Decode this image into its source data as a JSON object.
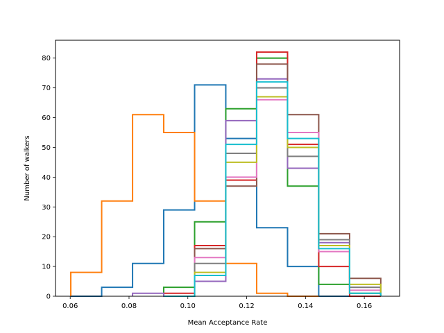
{
  "chart_data": {
    "type": "histogram",
    "title": "",
    "xlabel": "Mean Acceptance Rate",
    "ylabel": "Number of walkers",
    "xlim": [
      0.055,
      0.172
    ],
    "ylim": [
      0,
      86
    ],
    "xticks": [
      0.06,
      0.08,
      0.1,
      0.12,
      0.14,
      0.16
    ],
    "xtick_labels": [
      "0.06",
      "0.08",
      "0.10",
      "0.12",
      "0.14",
      "0.16"
    ],
    "yticks": [
      0,
      10,
      20,
      30,
      40,
      50,
      60,
      70,
      80
    ],
    "ytick_labels": [
      "0",
      "10",
      "20",
      "30",
      "40",
      "50",
      "60",
      "70",
      "80"
    ],
    "grid": false,
    "legend": "none",
    "histtype": "step",
    "series": [
      {
        "color": "#1f77b4",
        "bin_edges": [
          0.0602,
          0.0707,
          0.0812,
          0.0918,
          0.1023,
          0.1129,
          0.1234,
          0.1339,
          0.1445,
          0.155
        ],
        "counts": [
          0,
          3,
          11,
          29,
          71,
          53,
          23,
          10,
          0
        ]
      },
      {
        "color": "#ff7f0e",
        "bin_edges": [
          0.0602,
          0.0707,
          0.0812,
          0.0918,
          0.1023,
          0.1129,
          0.1234,
          0.1339,
          0.1445
        ],
        "counts": [
          8,
          32,
          61,
          55,
          32,
          11,
          1,
          0
        ]
      },
      {
        "color": "#2ca02c",
        "bin_edges": [
          0.0918,
          0.1023,
          0.1129,
          0.1234,
          0.1339,
          0.1445,
          0.155,
          0.1656
        ],
        "counts": [
          3,
          25,
          63,
          80,
          37,
          4,
          1
        ]
      },
      {
        "color": "#d62728",
        "bin_edges": [
          0.0918,
          0.1023,
          0.1129,
          0.1234,
          0.1339,
          0.1445,
          0.155,
          0.1656
        ],
        "counts": [
          1,
          17,
          39,
          82,
          51,
          10,
          0
        ]
      },
      {
        "color": "#9467bd",
        "bin_edges": [
          0.0812,
          0.0918,
          0.1023,
          0.1129,
          0.1234,
          0.1339,
          0.1445,
          0.155,
          0.1656
        ],
        "counts": [
          1,
          0,
          5,
          59,
          73,
          43,
          18,
          3
        ]
      },
      {
        "color": "#8c564b",
        "bin_edges": [
          0.0918,
          0.1023,
          0.1129,
          0.1234,
          0.1339,
          0.1445,
          0.155,
          0.1656
        ],
        "counts": [
          0,
          16,
          37,
          78,
          61,
          21,
          6
        ]
      },
      {
        "color": "#e377c2",
        "bin_edges": [
          0.0918,
          0.1023,
          0.1129,
          0.1234,
          0.1339,
          0.1445,
          0.155,
          0.1656
        ],
        "counts": [
          0,
          13,
          40,
          66,
          55,
          15,
          2
        ]
      },
      {
        "color": "#7f7f7f",
        "bin_edges": [
          0.0918,
          0.1023,
          0.1129,
          0.1234,
          0.1339,
          0.1445,
          0.155,
          0.1656
        ],
        "counts": [
          0,
          11,
          48,
          70,
          47,
          19,
          3
        ]
      },
      {
        "color": "#bcbd22",
        "bin_edges": [
          0.0918,
          0.1023,
          0.1129,
          0.1234,
          0.1339,
          0.1445,
          0.155,
          0.1656
        ],
        "counts": [
          0,
          8,
          45,
          67,
          50,
          17,
          4
        ]
      },
      {
        "color": "#17becf",
        "bin_edges": [
          0.0918,
          0.1023,
          0.1129,
          0.1234,
          0.1339,
          0.1445,
          0.155,
          0.1656
        ],
        "counts": [
          0,
          7,
          51,
          72,
          53,
          16,
          1
        ]
      }
    ]
  }
}
